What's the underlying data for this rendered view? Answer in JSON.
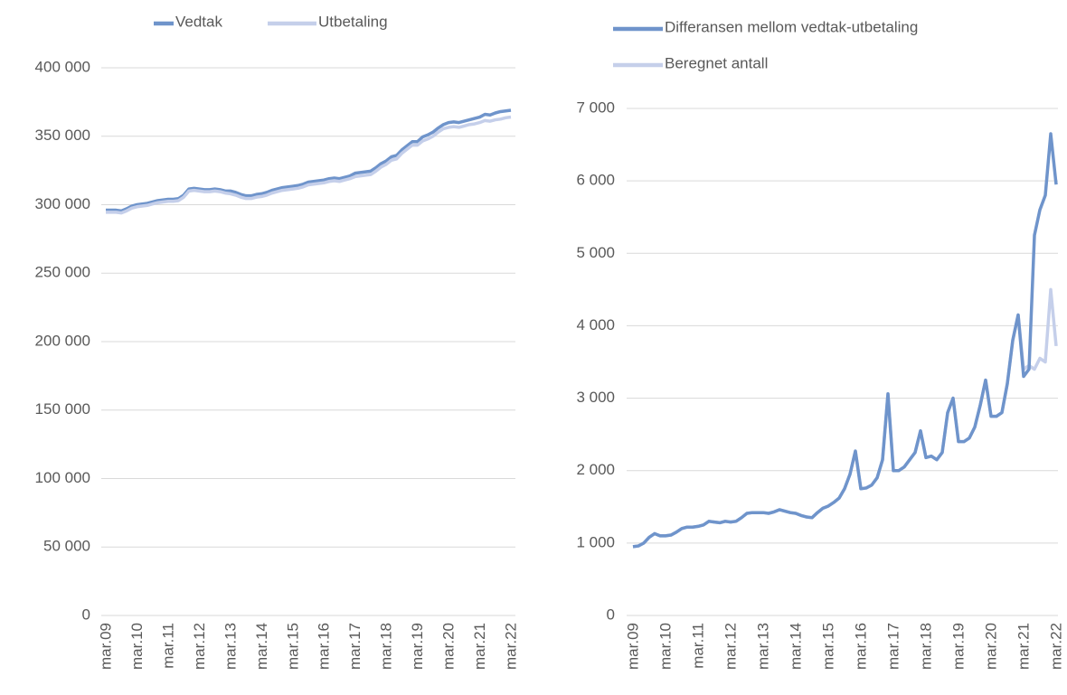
{
  "chart_data": [
    {
      "type": "line",
      "legend": "top",
      "grid": true,
      "categories": [
        "mar.09",
        null,
        null,
        null,
        null,
        null,
        "mar.10",
        null,
        null,
        null,
        null,
        null,
        "mar.11",
        null,
        null,
        null,
        null,
        null,
        "mar.12",
        null,
        null,
        null,
        null,
        null,
        "mar.13",
        null,
        null,
        null,
        null,
        null,
        "mar.14",
        null,
        null,
        null,
        null,
        null,
        "mar.15",
        null,
        null,
        null,
        null,
        null,
        "mar.16",
        null,
        null,
        null,
        null,
        null,
        "mar.17",
        null,
        null,
        null,
        null,
        null,
        "mar.18",
        null,
        null,
        null,
        null,
        null,
        "mar.19",
        null,
        null,
        null,
        null,
        null,
        "mar.20",
        null,
        null,
        null,
        null,
        null,
        "mar.21",
        null,
        null,
        null,
        null,
        null,
        "mar.22"
      ],
      "ylim": [
        0,
        400000
      ],
      "yticks": [
        0,
        {
          "value": 50000,
          "label": "50 000"
        },
        {
          "value": 100000,
          "label": "100 000"
        },
        {
          "value": 150000,
          "label": "150 000"
        },
        {
          "value": 200000,
          "label": "200 000"
        },
        {
          "value": 250000,
          "label": "250 000"
        },
        {
          "value": 300000,
          "label": "300 000"
        },
        {
          "value": 350000,
          "label": "350 000"
        },
        {
          "value": 400000,
          "label": "400 000"
        }
      ],
      "series": [
        {
          "name": "Vedtak",
          "color": "#6f94cb",
          "values": [
            296000,
            296000,
            296000,
            295500,
            297000,
            299000,
            300000,
            300500,
            301000,
            302000,
            303000,
            303500,
            304000,
            304000,
            304500,
            307000,
            311500,
            312000,
            311500,
            311000,
            311000,
            311500,
            311000,
            310000,
            310000,
            309000,
            307500,
            306500,
            306500,
            307500,
            308000,
            309000,
            310500,
            311500,
            312500,
            313000,
            313500,
            314000,
            315000,
            316500,
            317000,
            317500,
            318000,
            319000,
            319500,
            319000,
            320000,
            321000,
            323000,
            323500,
            324000,
            324500,
            327000,
            330000,
            332000,
            335000,
            336000,
            340000,
            343000,
            346000,
            346000,
            349500,
            351000,
            353000,
            356000,
            358500,
            360000,
            360500,
            360000,
            361000,
            362000,
            363000,
            364000,
            366000,
            365500,
            367000,
            368000,
            368500,
            369000
          ]
        },
        {
          "name": "Utbetaling",
          "color": "#c5cfea",
          "values": [
            294500,
            294500,
            294500,
            294000,
            295500,
            297500,
            298500,
            299000,
            299500,
            300500,
            301500,
            302000,
            302500,
            302500,
            303000,
            305500,
            310000,
            310500,
            310000,
            309500,
            309500,
            310000,
            309500,
            308500,
            308000,
            307000,
            305500,
            304500,
            304500,
            305500,
            306000,
            307000,
            308500,
            309500,
            310500,
            311000,
            311500,
            312000,
            313000,
            314500,
            315000,
            315500,
            316000,
            317000,
            317500,
            317000,
            318000,
            319000,
            320500,
            321000,
            321500,
            322000,
            324500,
            327500,
            329500,
            332500,
            333500,
            337500,
            340500,
            343500,
            343500,
            346500,
            348000,
            350000,
            353000,
            355500,
            356500,
            357000,
            356500,
            357500,
            358500,
            359000,
            360000,
            361500,
            361000,
            362000,
            362500,
            363500,
            364000
          ]
        }
      ]
    },
    {
      "type": "line",
      "legend": "top",
      "grid": true,
      "categories": [
        "mar.09",
        null,
        null,
        null,
        null,
        null,
        "mar.10",
        null,
        null,
        null,
        null,
        null,
        "mar.11",
        null,
        null,
        null,
        null,
        null,
        "mar.12",
        null,
        null,
        null,
        null,
        null,
        "mar.13",
        null,
        null,
        null,
        null,
        null,
        "mar.14",
        null,
        null,
        null,
        null,
        null,
        "mar.15",
        null,
        null,
        null,
        null,
        null,
        "mar.16",
        null,
        null,
        null,
        null,
        null,
        "mar.17",
        null,
        null,
        null,
        null,
        null,
        "mar.18",
        null,
        null,
        null,
        null,
        null,
        "mar.19",
        null,
        null,
        null,
        null,
        null,
        "mar.20",
        null,
        null,
        null,
        null,
        null,
        "mar.21",
        null,
        null,
        null,
        null,
        null,
        "mar.22"
      ],
      "ylim": [
        0,
        7000
      ],
      "yticks": [
        0,
        {
          "value": 1000,
          "label": "1 000"
        },
        {
          "value": 2000,
          "label": "2 000"
        },
        {
          "value": 3000,
          "label": "3 000"
        },
        {
          "value": 4000,
          "label": "4 000"
        },
        {
          "value": 5000,
          "label": "5 000"
        },
        {
          "value": 6000,
          "label": "6 000"
        },
        {
          "value": 7000,
          "label": "7 000"
        }
      ],
      "series": [
        {
          "name": "Beregnet antall",
          "color": "#c5cfea",
          "values": [
            950,
            960,
            1000,
            1080,
            1130,
            1100,
            1100,
            1110,
            1150,
            1200,
            1220,
            1220,
            1230,
            1250,
            1300,
            1290,
            1280,
            1300,
            1290,
            1300,
            1350,
            1410,
            1420,
            1420,
            1420,
            1410,
            1430,
            1460,
            1440,
            1420,
            1410,
            1380,
            1360,
            1350,
            1420,
            1480,
            1510,
            1560,
            1620,
            1750,
            1950,
            2270,
            1750,
            1760,
            1800,
            1900,
            2150,
            3060,
            2000,
            2000,
            2050,
            2150,
            2250,
            2550,
            2180,
            2200,
            2150,
            2250,
            2800,
            3000,
            2400,
            2400,
            2450,
            2600,
            2900,
            3250,
            2750,
            2750,
            2800,
            3200,
            3800,
            4150,
            3400,
            3450,
            3400,
            3550,
            3500,
            4500,
            3720
          ]
        },
        {
          "name": "Differansen mellom vedtak-utbetaling",
          "color": "#6f94cb",
          "values": [
            950,
            960,
            1000,
            1080,
            1130,
            1100,
            1100,
            1110,
            1150,
            1200,
            1220,
            1220,
            1230,
            1250,
            1300,
            1290,
            1280,
            1300,
            1290,
            1300,
            1350,
            1410,
            1420,
            1420,
            1420,
            1410,
            1430,
            1460,
            1440,
            1420,
            1410,
            1380,
            1360,
            1350,
            1420,
            1480,
            1510,
            1560,
            1620,
            1750,
            1950,
            2270,
            1750,
            1760,
            1800,
            1900,
            2150,
            3060,
            2000,
            2000,
            2050,
            2150,
            2250,
            2550,
            2180,
            2200,
            2150,
            2250,
            2800,
            3000,
            2400,
            2400,
            2450,
            2600,
            2900,
            3250,
            2750,
            2750,
            2800,
            3200,
            3800,
            4150,
            3300,
            3400,
            5250,
            5600,
            5800,
            6650,
            5950
          ]
        }
      ]
    }
  ]
}
